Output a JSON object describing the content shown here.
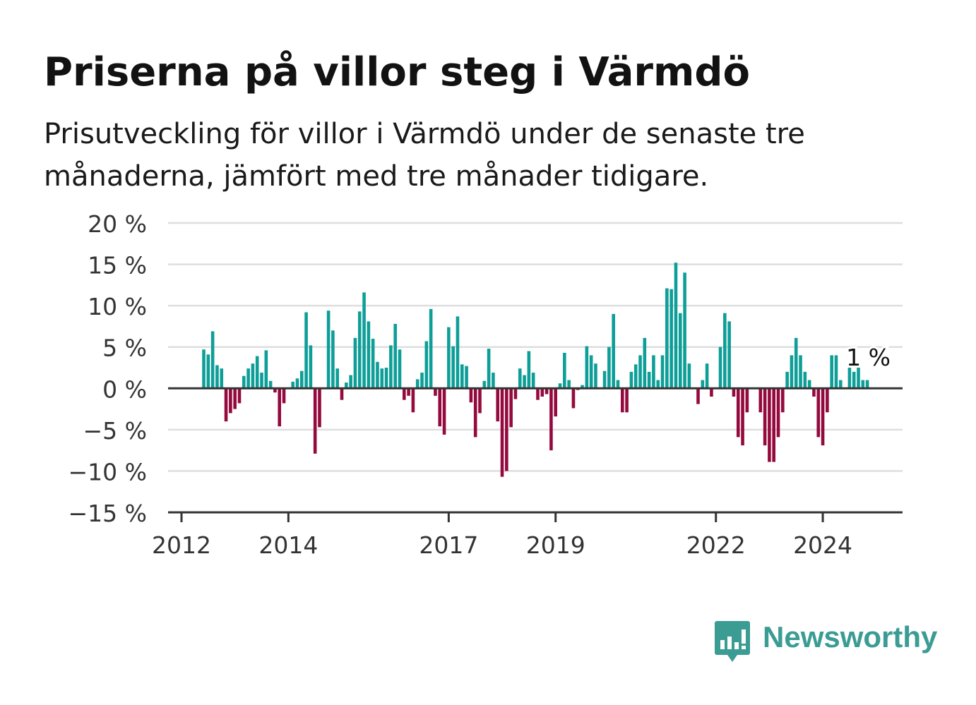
{
  "title": "Priserna på villor steg i Värmdö",
  "subtitle": "Prisutveckling för villor i Värmdö under de senaste tre månaderna, jämfört med tre månader tidigare.",
  "brand": {
    "name": "Newsworthy",
    "color": "#3a9c93",
    "icon": "bar-chart-speech-bubble-icon"
  },
  "colors": {
    "positive": "#0e9e98",
    "negative": "#950a3e",
    "grid": "#dedede",
    "axis": "#333333"
  },
  "chart_data": {
    "type": "bar",
    "ylim": [
      -15,
      20
    ],
    "y_ticks": [
      20,
      15,
      10,
      5,
      0,
      -5,
      -10,
      -15
    ],
    "y_tick_labels": [
      "20 %",
      "15 %",
      "10 %",
      "5 %",
      "0 %",
      "−5 %",
      "−10 %",
      "−15 %"
    ],
    "x_tick_labels": [
      "2012",
      "2014",
      "2017",
      "2019",
      "2022",
      "2024"
    ],
    "x_tick_years": [
      2012,
      2014,
      2017,
      2019,
      2022,
      2024
    ],
    "x_start": "2012-01",
    "grid": true,
    "annotation": "1 %",
    "series": [
      {
        "values": [
          4.7,
          4.1,
          6.9,
          2.8,
          2.4,
          -4.0,
          -3.0,
          -2.5,
          -1.8,
          1.5,
          2.4,
          3.0,
          3.9,
          1.9,
          4.6,
          0.9,
          -0.5,
          -4.6,
          -1.8,
          0.0,
          0.8,
          1.2,
          2.1,
          9.2,
          5.2,
          -7.9,
          -4.7,
          0.0,
          9.4,
          7.0,
          2.4,
          -1.4,
          0.7,
          1.6,
          6.1,
          9.3,
          11.6,
          8.1,
          6.0,
          3.2,
          2.4,
          2.5,
          5.2,
          7.8,
          4.7,
          -1.4,
          -0.9,
          -2.9,
          1.1,
          1.9,
          5.7,
          9.6,
          -0.9,
          -4.6,
          -5.6,
          7.4,
          5.1,
          8.7,
          2.9,
          2.7,
          -1.7,
          -5.9,
          -3.0,
          0.9,
          4.8,
          1.9,
          -4.0,
          -10.7,
          -10.0,
          -4.7,
          -1.3,
          2.4,
          1.6,
          4.5,
          1.9,
          -1.4,
          -1.0,
          -0.7,
          -7.5,
          -3.4,
          0.6,
          4.3,
          1.0,
          -2.4,
          -0.2,
          0.4,
          5.1,
          4.0,
          3.0,
          0.0,
          2.1,
          5.0,
          9.0,
          1.0,
          -2.9,
          -2.9,
          2.0,
          2.9,
          4.0,
          6.1,
          2.0,
          4.0,
          1.0,
          4.0,
          12.1,
          12.0,
          15.2,
          9.1,
          14.0,
          3.0,
          0.0,
          -1.9,
          1.0,
          3.0,
          -1.0,
          0.0,
          5.0,
          9.1,
          8.1,
          -1.0,
          -5.9,
          -6.9,
          -2.9,
          0.0,
          0.0,
          -2.9,
          -6.9,
          -8.9,
          -8.9,
          -5.9,
          -2.9,
          2.0,
          4.0,
          6.1,
          4.0,
          2.0,
          1.0,
          -1.0,
          -5.9,
          -6.9,
          -2.9,
          4.0,
          4.0,
          1.0,
          0.0,
          3.0,
          2.0,
          3.0,
          1.0,
          1.0
        ]
      }
    ]
  }
}
